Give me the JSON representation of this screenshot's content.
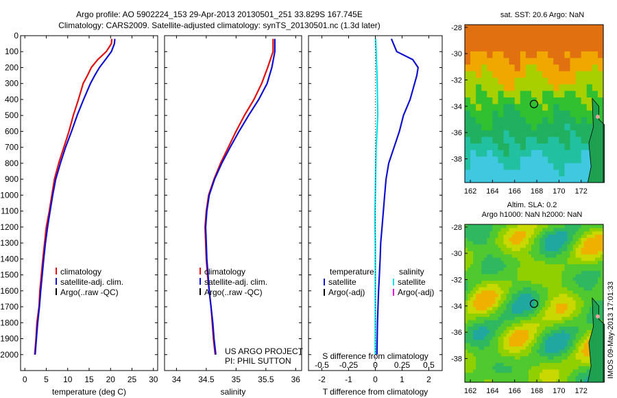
{
  "header": {
    "title": "Argo profile: AO 5902224_153 29-Apr-2013 20130501_251 33.829S 167.745E",
    "subtitle": "Climatology: CARS2009. Satellite-adjusted climatology: synTS_20130501.nc (1.3d later)"
  },
  "footer_stamp": "IMOS 09-May-2013 17:01:33",
  "colors": {
    "climatology": "#e01010",
    "satellite": "#1010d0",
    "argo": "#000000",
    "sdiff_satellite": "#00e0e8",
    "sdiff_argo": "#e000e0"
  },
  "chart_data": [
    {
      "type": "line",
      "panel": "temperature",
      "xlabel": "temperature (deg C)",
      "ylabel": "",
      "xlim": [
        -1,
        31
      ],
      "ylim": [
        2100,
        0
      ],
      "xticks": [
        "0",
        "5",
        "10",
        "15",
        "20",
        "25",
        "30"
      ],
      "yticks": [
        "0",
        "100",
        "200",
        "300",
        "400",
        "500",
        "600",
        "700",
        "800",
        "900",
        "1000",
        "1100",
        "1200",
        "1300",
        "1400",
        "1500",
        "1600",
        "1700",
        "1800",
        "1900",
        "2000"
      ],
      "legend": [
        "climatology",
        "satellite-adj. clim.",
        "Argo(..raw -QC)"
      ],
      "legend_position": "lower-right",
      "series": [
        {
          "name": "climatology",
          "color": "#e01010",
          "x": [
            20.3,
            20.2,
            19.0,
            17.0,
            15.5,
            14.6,
            13.6,
            12.5,
            11.3,
            10.3,
            9.1,
            7.9,
            6.9,
            6.3,
            5.7,
            5.0,
            4.6,
            4.2,
            3.5,
            3.3,
            2.8,
            2.6,
            2.3
          ],
          "y": [
            20,
            50,
            100,
            150,
            200,
            250,
            300,
            400,
            500,
            600,
            700,
            800,
            900,
            1000,
            1100,
            1200,
            1300,
            1400,
            1600,
            1700,
            1800,
            1900,
            2000
          ]
        },
        {
          "name": "satellite-adj. clim.",
          "color": "#1010d0",
          "x": [
            21.0,
            20.9,
            20.2,
            18.8,
            17.4,
            16.3,
            15.3,
            13.7,
            12.2,
            10.9,
            9.5,
            8.3,
            7.2,
            6.5,
            5.9,
            5.3,
            4.8,
            4.4,
            3.7,
            3.4,
            3.0,
            2.7,
            2.4
          ],
          "y": [
            20,
            50,
            100,
            150,
            200,
            250,
            300,
            400,
            500,
            600,
            700,
            800,
            900,
            1000,
            1100,
            1200,
            1300,
            1400,
            1600,
            1700,
            1800,
            1900,
            2000
          ]
        }
      ]
    },
    {
      "type": "line",
      "panel": "salinity",
      "xlabel": "salinity",
      "ylabel": "",
      "xlim": [
        33.8,
        36.1
      ],
      "ylim": [
        2100,
        0
      ],
      "xticks": [
        "34",
        "34.5",
        "35",
        "35.5",
        "36"
      ],
      "legend": [
        "climatology",
        "satellite-adj. clim.",
        "Argo(..raw -QC)"
      ],
      "legend_position": "lower-right",
      "annotations": [
        "US ARGO PROJECT",
        "PI: PHIL SUTTON"
      ],
      "series": [
        {
          "name": "climatology",
          "color": "#e01010",
          "x": [
            35.62,
            35.62,
            35.53,
            35.43,
            35.3,
            35.14,
            35.0,
            34.87,
            34.74,
            34.63,
            34.54,
            34.5,
            34.48,
            34.49,
            34.5,
            34.52,
            34.55,
            34.58,
            34.6,
            34.62,
            34.65
          ],
          "y": [
            20,
            100,
            200,
            300,
            400,
            500,
            600,
            700,
            800,
            900,
            1000,
            1100,
            1200,
            1300,
            1400,
            1500,
            1600,
            1700,
            1800,
            1900,
            2000
          ]
        },
        {
          "name": "satellite-adj. clim.",
          "color": "#1010d0",
          "x": [
            35.65,
            35.65,
            35.6,
            35.52,
            35.38,
            35.21,
            35.05,
            34.9,
            34.76,
            34.64,
            34.55,
            34.51,
            34.49,
            34.5,
            34.51,
            34.53,
            34.55,
            34.58,
            34.61,
            34.63,
            34.66
          ],
          "y": [
            20,
            100,
            200,
            300,
            400,
            500,
            600,
            700,
            800,
            900,
            1000,
            1100,
            1200,
            1300,
            1400,
            1500,
            1600,
            1700,
            1800,
            1900,
            2000
          ]
        }
      ]
    },
    {
      "type": "line",
      "panel": "difference",
      "xlabel": "T difference from climatology",
      "x2label": "S difference from climatology",
      "xlim": [
        -2.5,
        2.5
      ],
      "ylim": [
        2100,
        0
      ],
      "xticks": [
        "-2",
        "-1",
        "0",
        "1",
        "2"
      ],
      "x2ticks": [
        "-0.5",
        "-0.25",
        "0",
        "0.25",
        "0.5"
      ],
      "legend_left": {
        "title": "temperature",
        "items": [
          "satellite",
          "Argo(-adj)"
        ]
      },
      "legend_right": {
        "title": "salinity",
        "items": [
          "satellite",
          "Argo(-adj)"
        ]
      },
      "series": [
        {
          "name": "temperature satellite",
          "color": "#1010d0",
          "x": [
            0.6,
            0.8,
            1.4,
            1.6,
            1.55,
            1.3,
            1.05,
            0.9,
            0.7,
            0.5,
            0.4,
            0.35,
            0.3,
            0.25,
            0.2,
            0.18,
            0.15,
            0.12,
            0.1,
            0.08,
            0.06
          ],
          "y": [
            20,
            100,
            150,
            200,
            250,
            400,
            500,
            600,
            700,
            800,
            900,
            1000,
            1100,
            1200,
            1300,
            1400,
            1500,
            1600,
            1700,
            1800,
            2000
          ]
        },
        {
          "name": "salinity satellite",
          "color": "#00e0e8",
          "x": [
            0.01,
            0.03,
            0.05,
            0.07,
            0.08,
            0.09,
            0.06,
            0.03,
            0.02,
            0.01,
            0.0,
            -0.01,
            -0.01,
            0.0,
            0.0,
            0.0,
            0.0,
            0.0,
            0.0
          ],
          "y": [
            20,
            100,
            200,
            300,
            400,
            500,
            600,
            700,
            800,
            900,
            1000,
            1100,
            1200,
            1300,
            1400,
            1500,
            1600,
            1800,
            2000
          ]
        }
      ]
    },
    {
      "type": "heatmap",
      "panel": "sst_map",
      "title": "sat. SST: 20.6  Argo: NaN",
      "xlim": [
        161.5,
        174
      ],
      "ylim": [
        -39.8,
        -27.8
      ],
      "xticks": [
        "162",
        "164",
        "166",
        "168",
        "170",
        "172"
      ],
      "yticks": [
        "-28",
        "-30",
        "-32",
        "-34",
        "-36",
        "-38"
      ],
      "marker": {
        "lon": 167.745,
        "lat": -33.829
      }
    },
    {
      "type": "heatmap",
      "panel": "sla_map",
      "title": "Altim. SLA: 0.2",
      "subtitle": "Argo h1000: NaN h2000: NaN",
      "xlim": [
        161.5,
        174
      ],
      "ylim": [
        -39.8,
        -27.8
      ],
      "xticks": [
        "162",
        "164",
        "166",
        "168",
        "170",
        "172"
      ],
      "yticks": [
        "-28",
        "-30",
        "-32",
        "-34",
        "-36",
        "-38"
      ],
      "marker": {
        "lon": 167.745,
        "lat": -33.829
      }
    }
  ]
}
